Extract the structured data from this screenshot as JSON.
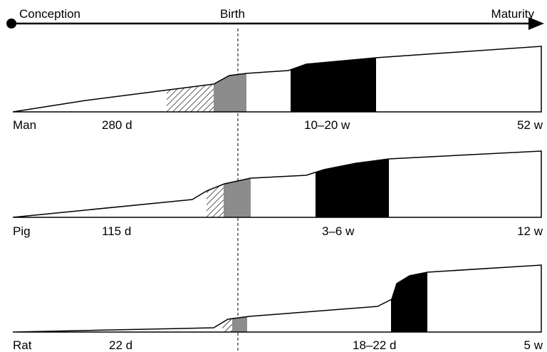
{
  "timeline": {
    "start_label": "Conception",
    "mid_label": "Birth",
    "end_label": "Maturity"
  },
  "panels": [
    {
      "species": "Man",
      "gestation": "280 d",
      "growth_period": "10–20 w",
      "maturity_age": "52 w"
    },
    {
      "species": "Pig",
      "gestation": "115 d",
      "growth_period": "3–6 w",
      "maturity_age": "12 w"
    },
    {
      "species": "Rat",
      "gestation": "22 d",
      "growth_period": "18–22 d",
      "maturity_age": "5 w"
    }
  ],
  "colors": {
    "line": "#000000",
    "grey_band": "#8c8c8c",
    "black_band": "#000000",
    "hatch": "#000000"
  }
}
